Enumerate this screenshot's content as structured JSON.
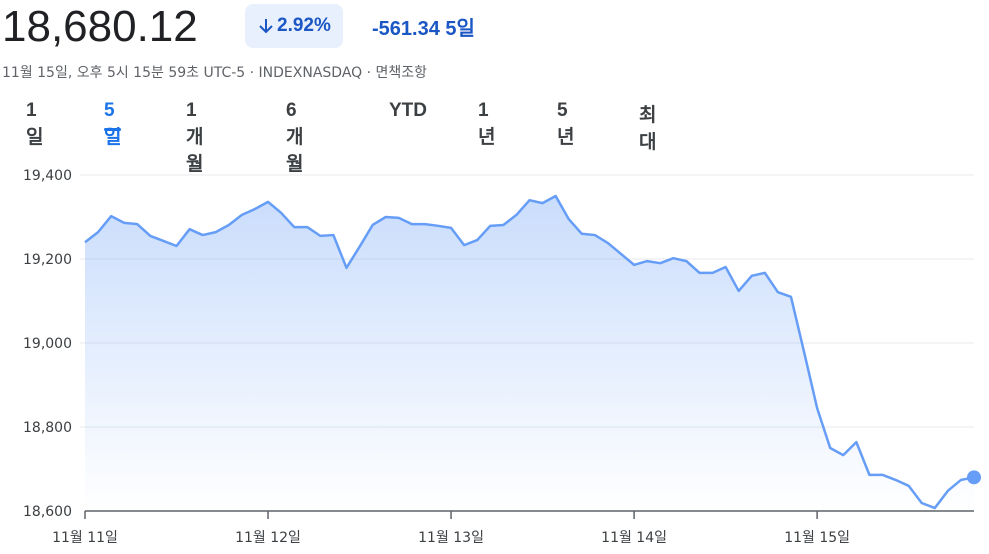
{
  "header": {
    "price": "18,680.12",
    "change_pct": "2.92%",
    "change": "-561.34",
    "period": "5일",
    "meta": "11월 15일, 오후 5시 15분 59초 UTC-5 · INDEXNASDAQ · 면책조항"
  },
  "tabs": [
    "1일",
    "5일",
    "1개월",
    "6개월",
    "YTD",
    "1년",
    "5년",
    "최대"
  ],
  "chart_data": {
    "type": "area",
    "categories": [
      "11월 11일",
      null,
      null,
      null,
      null,
      null,
      null,
      null,
      null,
      null,
      null,
      null,
      null,
      null,
      "11월 12일",
      null,
      null,
      null,
      null,
      null,
      null,
      null,
      null,
      null,
      null,
      null,
      null,
      null,
      "11월 13일",
      null,
      null,
      null,
      null,
      null,
      null,
      null,
      null,
      null,
      null,
      null,
      null,
      null,
      "11월 14일",
      null,
      null,
      null,
      null,
      null,
      null,
      null,
      null,
      null,
      null,
      null,
      null,
      null,
      "11월 15일",
      null,
      null,
      null,
      null,
      null,
      null,
      null,
      null,
      null,
      null,
      null,
      null
    ],
    "values": [
      19240,
      19264,
      19302,
      19286,
      19283,
      19255,
      19243,
      19231,
      19271,
      19257,
      19264,
      19281,
      19305,
      19319,
      19336,
      19310,
      19276,
      19276,
      19255,
      19257,
      19179,
      19229,
      19281,
      19300,
      19298,
      19283,
      19283,
      19279,
      19274,
      19233,
      19245,
      19279,
      19281,
      19305,
      19340,
      19333,
      19350,
      19295,
      19260,
      19257,
      19238,
      19212,
      19186,
      19195,
      19190,
      19202,
      19195,
      19167,
      19167,
      19181,
      19124,
      19160,
      19167,
      19121,
      19110,
      18979,
      18845,
      18750,
      18733,
      18764,
      18686,
      18686,
      18674,
      18660,
      18619,
      18607,
      18648,
      18674,
      18680.12
    ],
    "color": "#669df6",
    "ylim": [
      18600,
      19400
    ],
    "yticks": [
      {
        "value": 18600,
        "label": "18,600"
      },
      {
        "value": 18800,
        "label": "18,800"
      },
      {
        "value": 19000,
        "label": "19,000"
      },
      {
        "value": 19200,
        "label": "19,200"
      },
      {
        "value": 19400,
        "label": "19,400"
      }
    ],
    "grid": true
  }
}
